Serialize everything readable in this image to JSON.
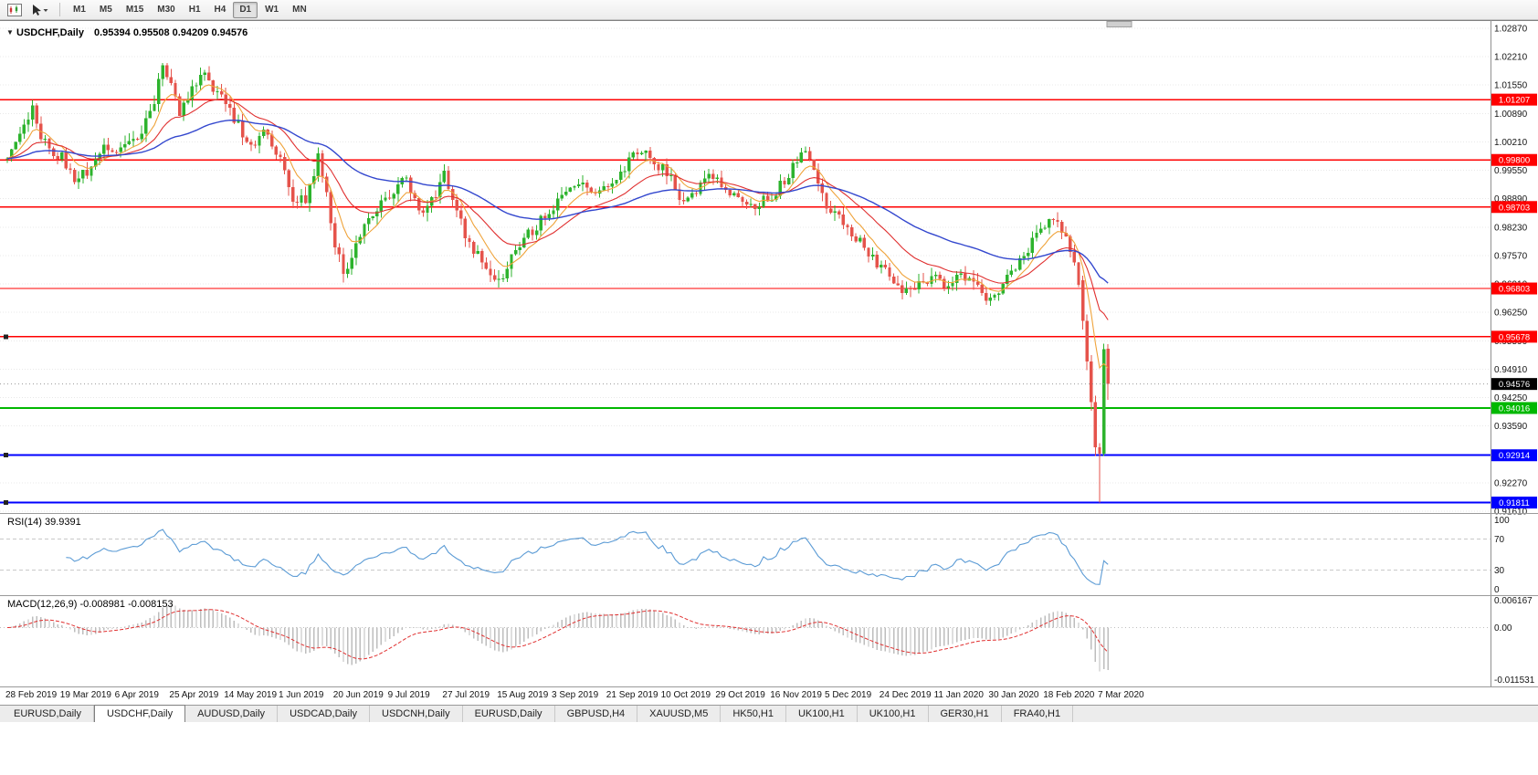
{
  "icons": {
    "dropdown": "▼"
  },
  "toolbar": {
    "timeframes": [
      "M1",
      "M5",
      "M15",
      "M30",
      "H1",
      "H4",
      "D1",
      "W1",
      "MN"
    ],
    "active_timeframe": "D1"
  },
  "tabs": {
    "items": [
      "EURUSD,Daily",
      "USDCHF,Daily",
      "AUDUSD,Daily",
      "USDCAD,Daily",
      "USDCNH,Daily",
      "EURUSD,Daily",
      "GBPUSD,H4",
      "XAUUSD,M5",
      "HK50,H1",
      "UK100,H1",
      "UK100,H1",
      "GER30,H1",
      "FRA40,H1"
    ],
    "active_index": 1
  },
  "colors": {
    "up": "#2DB32D",
    "down": "#E5534B",
    "ma_fast": "#EFA33A",
    "ma_mid": "#E03030",
    "ma_slow": "#3347CE",
    "rsi_line": "#5B9BD5",
    "macd_hist": "#BDBDBD",
    "macd_signal": "#E03030",
    "red_level": "#FF0000",
    "green_level": "#00B800",
    "blue_level": "#0000FF",
    "grid": "#E8E8E8",
    "pane_separator": "#9A9A9A"
  },
  "chart_data": {
    "type": "candlestick",
    "symbol": "USDCHF",
    "period": "Daily",
    "title": "USDCHF,Daily",
    "ohlc_label": "0.95394 0.95508 0.94209 0.94576",
    "current": {
      "open": 0.95394,
      "high": 0.95508,
      "low": 0.94209,
      "close": 0.94576
    },
    "y_ticks": [
      "1.02870",
      "1.02210",
      "1.01550",
      "1.00890",
      "1.00210",
      "0.99550",
      "0.98890",
      "0.98230",
      "0.97570",
      "0.96910",
      "0.96250",
      "0.95590",
      "0.94910",
      "0.94250",
      "0.93590",
      "0.92930",
      "0.92270",
      "0.91610"
    ],
    "x_labels": [
      "28 Feb 2019",
      "19 Mar 2019",
      "6 Apr 2019",
      "25 Apr 2019",
      "14 May 2019",
      "1 Jun 2019",
      "20 Jun 2019",
      "9 Jul 2019",
      "27 Jul 2019",
      "15 Aug 2019",
      "3 Sep 2019",
      "21 Sep 2019",
      "10 Oct 2019",
      "29 Oct 2019",
      "16 Nov 2019",
      "5 Dec 2019",
      "24 Dec 2019",
      "11 Jan 2020",
      "30 Jan 2020",
      "18 Feb 2020",
      "7 Mar 2020"
    ],
    "bars_per_label": 13,
    "hlines": [
      {
        "price": 1.01207,
        "label": "1.01207",
        "color": "#FF0000",
        "w": 1.3,
        "marker": false
      },
      {
        "price": 0.998,
        "label": "0.99800",
        "color": "#FF0000",
        "w": 1.3,
        "marker": false
      },
      {
        "price": 0.98703,
        "label": "0.98703",
        "color": "#FF0000",
        "w": 1.3,
        "marker": false
      },
      {
        "price": 0.96803,
        "label": "0.96803",
        "color": "#FF0000",
        "w": 1.3,
        "marker": false
      },
      {
        "price": 0.95678,
        "label": "0.95678",
        "color": "#FF0000",
        "w": 1.3,
        "marker": true
      },
      {
        "price": 0.94016,
        "label": "0.94016",
        "color": "#00B800",
        "w": 2,
        "marker": false
      },
      {
        "price": 0.92914,
        "label": "0.92914",
        "color": "#0000FF",
        "w": 2,
        "marker": true
      },
      {
        "price": 0.91811,
        "label": "0.91811",
        "color": "#0000FF",
        "w": 2,
        "marker": true
      }
    ],
    "bid": {
      "price": 0.94576,
      "label": "0.94576",
      "tag_color": "#000000",
      "line_color": "#9A9A9A"
    },
    "candles": {
      "bars": 256,
      "seed": 20200312,
      "noise": 0.0026,
      "wick": 0.002,
      "up_color": "#2DB32D",
      "down_color": "#E5534B",
      "anchors": [
        [
          0,
          0.9995
        ],
        [
          3,
          1.004
        ],
        [
          6,
          1.0095
        ],
        [
          8,
          1.003
        ],
        [
          11,
          1.0
        ],
        [
          13,
          0.9985
        ],
        [
          16,
          0.9925
        ],
        [
          19,
          0.9955
        ],
        [
          23,
          1.0005
        ],
        [
          26,
          0.999
        ],
        [
          29,
          1.0015
        ],
        [
          32,
          1.0045
        ],
        [
          35,
          1.012
        ],
        [
          37,
          1.0205
        ],
        [
          39,
          1.0165
        ],
        [
          41,
          1.0095
        ],
        [
          43,
          1.0125
        ],
        [
          46,
          1.0185
        ],
        [
          48,
          1.016
        ],
        [
          50,
          1.0135
        ],
        [
          53,
          1.0095
        ],
        [
          56,
          1.004
        ],
        [
          59,
          1.001
        ],
        [
          61,
          1.0055
        ],
        [
          63,
          1.001
        ],
        [
          65,
          0.9975
        ],
        [
          68,
          0.9895
        ],
        [
          71,
          0.9885
        ],
        [
          74,
          0.999
        ],
        [
          76,
          0.9905
        ],
        [
          78,
          0.977
        ],
        [
          80,
          0.9725
        ],
        [
          82,
          0.9745
        ],
        [
          85,
          0.9835
        ],
        [
          88,
          0.987
        ],
        [
          91,
          0.989
        ],
        [
          94,
          0.9945
        ],
        [
          96,
          0.9915
        ],
        [
          99,
          0.9855
        ],
        [
          101,
          0.988
        ],
        [
          104,
          0.9945
        ],
        [
          107,
          0.987
        ],
        [
          109,
          0.98
        ],
        [
          112,
          0.9755
        ],
        [
          115,
          0.9715
        ],
        [
          117,
          0.9692
        ],
        [
          120,
          0.9755
        ],
        [
          123,
          0.98
        ],
        [
          126,
          0.9825
        ],
        [
          128,
          0.9855
        ],
        [
          130,
          0.9875
        ],
        [
          133,
          0.9905
        ],
        [
          136,
          0.9925
        ],
        [
          139,
          0.9895
        ],
        [
          141,
          0.991
        ],
        [
          143,
          0.9905
        ],
        [
          146,
          0.994
        ],
        [
          149,
          0.9995
        ],
        [
          151,
          1.0005
        ],
        [
          153,
          0.9975
        ],
        [
          156,
          0.9965
        ],
        [
          159,
          0.992
        ],
        [
          161,
          0.9875
        ],
        [
          164,
          0.9905
        ],
        [
          167,
          0.994
        ],
        [
          169,
          0.9935
        ],
        [
          172,
          0.9905
        ],
        [
          175,
          0.988
        ],
        [
          178,
          0.9865
        ],
        [
          180,
          0.989
        ],
        [
          182,
          0.9895
        ],
        [
          185,
          0.9935
        ],
        [
          188,
          0.9975
        ],
        [
          190,
          1.0
        ],
        [
          192,
          0.996
        ],
        [
          195,
          0.987
        ],
        [
          198,
          0.984
        ],
        [
          201,
          0.981
        ],
        [
          204,
          0.9775
        ],
        [
          207,
          0.974
        ],
        [
          209,
          0.973
        ],
        [
          212,
          0.968
        ],
        [
          214,
          0.9672
        ],
        [
          217,
          0.97
        ],
        [
          221,
          0.9705
        ],
        [
          224,
          0.9685
        ],
        [
          227,
          0.9715
        ],
        [
          230,
          0.97
        ],
        [
          232,
          0.967
        ],
        [
          234,
          0.965
        ],
        [
          236,
          0.968
        ],
        [
          239,
          0.972
        ],
        [
          242,
          0.976
        ],
        [
          245,
          0.98
        ],
        [
          247,
          0.9828
        ],
        [
          249,
          0.984
        ],
        [
          251,
          0.9822
        ],
        [
          253,
          0.9762
        ],
        [
          255,
          0.97
        ]
      ],
      "tail": [
        [
          0.97,
          0.971,
          0.9585,
          0.9605
        ],
        [
          0.9605,
          0.962,
          0.949,
          0.951
        ],
        [
          0.951,
          0.9525,
          0.9395,
          0.9415
        ],
        [
          0.9415,
          0.943,
          0.929,
          0.931
        ],
        [
          0.931,
          0.932,
          0.91811,
          0.9295
        ],
        [
          0.9295,
          0.9552,
          0.929,
          0.9539
        ],
        [
          0.95394,
          0.95508,
          0.94209,
          0.94576
        ]
      ]
    },
    "moving_averages": [
      {
        "period": 8,
        "type": "ema",
        "color": "#EFA33A",
        "width": 1.1
      },
      {
        "period": 21,
        "type": "ema",
        "color": "#E03030",
        "width": 1.1
      },
      {
        "period": 55,
        "type": "ema",
        "color": "#3347CE",
        "width": 1.4
      }
    ],
    "rsi": {
      "label": "RSI(14) 39.9391",
      "period": 14,
      "value": 39.9391,
      "color": "#5B9BD5",
      "levels": [
        70,
        30
      ],
      "ticks": [
        "100",
        "70",
        "30",
        "0"
      ],
      "range": [
        0,
        100
      ]
    },
    "macd": {
      "label": "MACD(12,26,9) -0.008981 -0.008153",
      "fast": 12,
      "slow": 26,
      "signal": 9,
      "macd_value": -0.008981,
      "signal_value": -0.008153,
      "hist_color": "#BDBDBD",
      "signal_color": "#E03030",
      "range": [
        0.006167,
        -0.011531
      ],
      "ticks": [
        {
          "label": "0.006167",
          "value": 0.006167
        },
        {
          "label": "0.00",
          "value": 0
        },
        {
          "label": "-0.011531",
          "value": -0.011531
        }
      ]
    }
  }
}
